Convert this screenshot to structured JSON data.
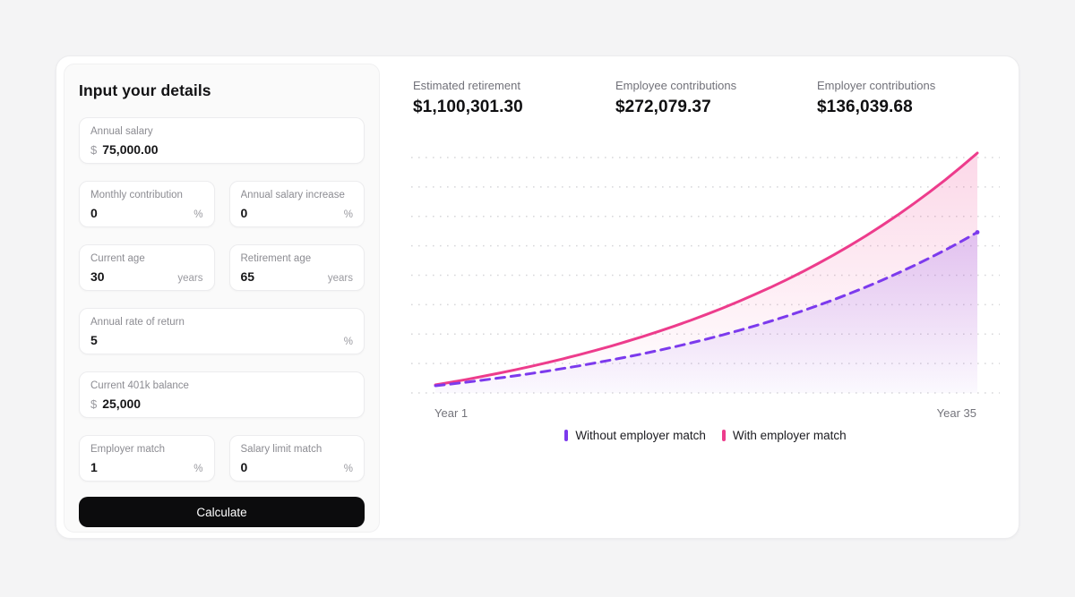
{
  "form": {
    "title": "Input your details",
    "fields": {
      "annual_salary": {
        "label": "Annual salary",
        "prefix": "$",
        "value": "75,000.00"
      },
      "monthly_contribution": {
        "label": "Monthly contribution",
        "value": "0",
        "suffix": "%"
      },
      "annual_salary_increase": {
        "label": "Annual salary increase",
        "value": "0",
        "suffix": "%"
      },
      "current_age": {
        "label": "Current age",
        "value": "30",
        "suffix": "years"
      },
      "retirement_age": {
        "label": "Retirement age",
        "value": "65",
        "suffix": "years"
      },
      "annual_rate_of_return": {
        "label": "Annual rate of return",
        "value": "5",
        "suffix": "%"
      },
      "current_401k_balance": {
        "label": "Current 401k balance",
        "prefix": "$",
        "value": "25,000"
      },
      "employer_match": {
        "label": "Employer match",
        "value": "1",
        "suffix": "%"
      },
      "salary_limit_match": {
        "label": "Salary limit match",
        "value": "0",
        "suffix": "%"
      }
    },
    "calculate_label": "Calculate"
  },
  "stats": [
    {
      "label": "Estimated retirement",
      "value": "$1,100,301.30"
    },
    {
      "label": "Employee contributions",
      "value": "$272,079.37"
    },
    {
      "label": "Employer contributions",
      "value": "$136,039.68"
    }
  ],
  "chart_data": {
    "type": "area",
    "title": "",
    "xlabel": "",
    "ylabel": "",
    "x_tick_labels": [
      "Year 1",
      "Year 35"
    ],
    "x": [
      1,
      2,
      3,
      4,
      5,
      6,
      7,
      8,
      9,
      10,
      11,
      12,
      13,
      14,
      15,
      16,
      17,
      18,
      19,
      20,
      21,
      22,
      23,
      24,
      25,
      26,
      27,
      28,
      29,
      30,
      31,
      32,
      33,
      34,
      35
    ],
    "ylim": [
      0,
      1100301.3
    ],
    "grid": "dotted-horizontal",
    "grid_line_count": 9,
    "legend_position": "bottom",
    "series": [
      {
        "name": "Without employer match",
        "color": "#7C3AED",
        "style": "dashed",
        "values": [
          32883,
          41160,
          49851,
          58977,
          68558,
          78619,
          89183,
          100275,
          111922,
          124151,
          136992,
          150474,
          164631,
          179496,
          195104,
          211492,
          228700,
          246768,
          265739,
          285659,
          306575,
          328537,
          351597,
          375809,
          401233,
          427927,
          455957,
          485388,
          516290,
          548737,
          582807,
          618581,
          656143,
          695583,
          736995
        ]
      },
      {
        "name": "With employer match",
        "color": "#ED3C8C",
        "style": "solid",
        "values": [
          36905,
          49405,
          62531,
          76312,
          90783,
          105977,
          121931,
          138657,
          156251,
          174740,
          194132,
          214493,
          235873,
          258322,
          281893,
          306642,
          332630,
          359916,
          388567,
          418650,
          450238,
          483410,
          518230,
          554796,
          593191,
          633506,
          675836,
          720283,
          766952,
          815954,
          867407,
          921432,
          978159,
          1037722,
          1100301.3
        ]
      }
    ],
    "colors": {
      "grid": "#d7d7da",
      "axis_text": "#74747b"
    }
  }
}
